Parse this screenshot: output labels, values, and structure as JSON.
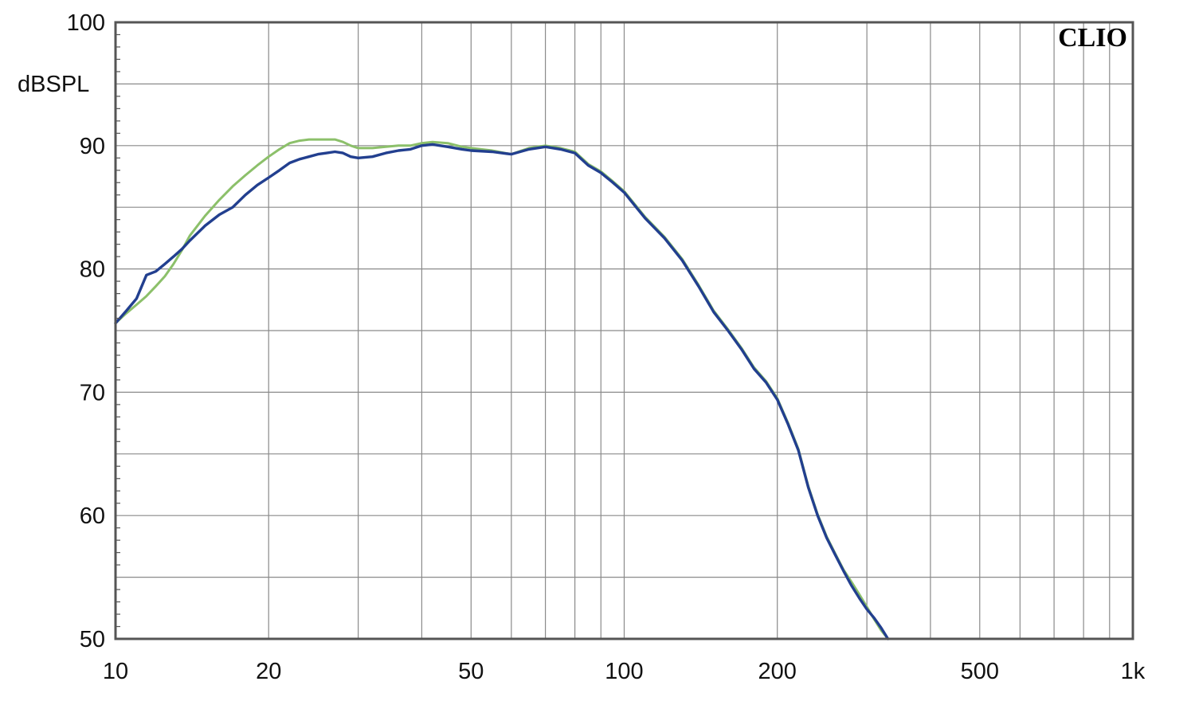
{
  "chart_data": {
    "type": "line",
    "brand_label": "CLIO",
    "ylabel": "dBSPL",
    "xscale": "log",
    "xlim": [
      10,
      1000
    ],
    "ylim": [
      50,
      100
    ],
    "grid": true,
    "x_ticks": [
      {
        "value": 10,
        "label": "10"
      },
      {
        "value": 20,
        "label": "20"
      },
      {
        "value": 50,
        "label": "50"
      },
      {
        "value": 100,
        "label": "100"
      },
      {
        "value": 200,
        "label": "200"
      },
      {
        "value": 500,
        "label": "500"
      },
      {
        "value": 1000,
        "label": "1k"
      }
    ],
    "y_ticks": [
      {
        "value": 100,
        "label": "100"
      },
      {
        "value": 90,
        "label": "90"
      },
      {
        "value": 80,
        "label": "80"
      },
      {
        "value": 70,
        "label": "70"
      },
      {
        "value": 60,
        "label": "60"
      },
      {
        "value": 50,
        "label": "50"
      }
    ],
    "series": [
      {
        "color": "#8cc06a",
        "points": [
          [
            10,
            75.6
          ],
          [
            10.5,
            76.4
          ],
          [
            11,
            77.1
          ],
          [
            11.5,
            77.8
          ],
          [
            12,
            78.6
          ],
          [
            12.5,
            79.4
          ],
          [
            13,
            80.4
          ],
          [
            13.5,
            81.5
          ],
          [
            14,
            82.7
          ],
          [
            15,
            84.3
          ],
          [
            16,
            85.6
          ],
          [
            17,
            86.7
          ],
          [
            18,
            87.6
          ],
          [
            19,
            88.4
          ],
          [
            20,
            89.1
          ],
          [
            21,
            89.7
          ],
          [
            22,
            90.2
          ],
          [
            23,
            90.4
          ],
          [
            24,
            90.5
          ],
          [
            25,
            90.5
          ],
          [
            26,
            90.5
          ],
          [
            27,
            90.5
          ],
          [
            28,
            90.3
          ],
          [
            29,
            90.0
          ],
          [
            30,
            89.8
          ],
          [
            32,
            89.8
          ],
          [
            34,
            89.9
          ],
          [
            36,
            90.0
          ],
          [
            38,
            90.0
          ],
          [
            40,
            90.2
          ],
          [
            42,
            90.3
          ],
          [
            45,
            90.2
          ],
          [
            48,
            89.9
          ],
          [
            50,
            89.8
          ],
          [
            55,
            89.6
          ],
          [
            60,
            89.3
          ],
          [
            65,
            89.8
          ],
          [
            70,
            90.0
          ],
          [
            75,
            89.8
          ],
          [
            80,
            89.5
          ],
          [
            85,
            88.5
          ],
          [
            90,
            87.9
          ],
          [
            95,
            87.1
          ],
          [
            100,
            86.3
          ],
          [
            110,
            84.2
          ],
          [
            120,
            82.6
          ],
          [
            130,
            80.8
          ],
          [
            140,
            78.7
          ],
          [
            150,
            76.6
          ],
          [
            160,
            75.1
          ],
          [
            170,
            73.6
          ],
          [
            180,
            72.0
          ],
          [
            190,
            70.9
          ],
          [
            200,
            69.5
          ],
          [
            210,
            67.5
          ],
          [
            220,
            65.4
          ],
          [
            230,
            62.4
          ],
          [
            240,
            60.1
          ],
          [
            250,
            58.3
          ],
          [
            260,
            56.9
          ],
          [
            270,
            55.6
          ],
          [
            280,
            54.6
          ],
          [
            290,
            53.6
          ],
          [
            300,
            52.6
          ],
          [
            310,
            51.6
          ],
          [
            320,
            50.7
          ],
          [
            330,
            50.0
          ]
        ]
      },
      {
        "color": "#223f8f",
        "points": [
          [
            10,
            75.6
          ],
          [
            10.5,
            76.6
          ],
          [
            11,
            77.6
          ],
          [
            11.5,
            79.5
          ],
          [
            12,
            79.8
          ],
          [
            12.5,
            80.4
          ],
          [
            13,
            81.0
          ],
          [
            13.5,
            81.6
          ],
          [
            14,
            82.3
          ],
          [
            15,
            83.5
          ],
          [
            16,
            84.4
          ],
          [
            17,
            85.0
          ],
          [
            18,
            86.0
          ],
          [
            19,
            86.8
          ],
          [
            20,
            87.4
          ],
          [
            21,
            88.0
          ],
          [
            22,
            88.6
          ],
          [
            23,
            88.9
          ],
          [
            24,
            89.1
          ],
          [
            25,
            89.3
          ],
          [
            26,
            89.4
          ],
          [
            27,
            89.5
          ],
          [
            28,
            89.4
          ],
          [
            29,
            89.1
          ],
          [
            30,
            89.0
          ],
          [
            32,
            89.1
          ],
          [
            34,
            89.4
          ],
          [
            36,
            89.6
          ],
          [
            38,
            89.7
          ],
          [
            40,
            90.0
          ],
          [
            42,
            90.1
          ],
          [
            45,
            89.9
          ],
          [
            48,
            89.7
          ],
          [
            50,
            89.6
          ],
          [
            55,
            89.5
          ],
          [
            60,
            89.3
          ],
          [
            65,
            89.7
          ],
          [
            70,
            89.9
          ],
          [
            75,
            89.7
          ],
          [
            80,
            89.4
          ],
          [
            85,
            88.4
          ],
          [
            90,
            87.8
          ],
          [
            95,
            87.0
          ],
          [
            100,
            86.2
          ],
          [
            110,
            84.1
          ],
          [
            120,
            82.5
          ],
          [
            130,
            80.7
          ],
          [
            140,
            78.6
          ],
          [
            150,
            76.5
          ],
          [
            160,
            75.0
          ],
          [
            170,
            73.5
          ],
          [
            180,
            71.9
          ],
          [
            190,
            70.8
          ],
          [
            200,
            69.4
          ],
          [
            210,
            67.4
          ],
          [
            220,
            65.3
          ],
          [
            230,
            62.3
          ],
          [
            240,
            60.0
          ],
          [
            250,
            58.2
          ],
          [
            260,
            56.8
          ],
          [
            270,
            55.5
          ],
          [
            280,
            54.3
          ],
          [
            290,
            53.3
          ],
          [
            300,
            52.4
          ],
          [
            310,
            51.7
          ],
          [
            320,
            50.9
          ],
          [
            330,
            50.0
          ]
        ]
      }
    ]
  }
}
